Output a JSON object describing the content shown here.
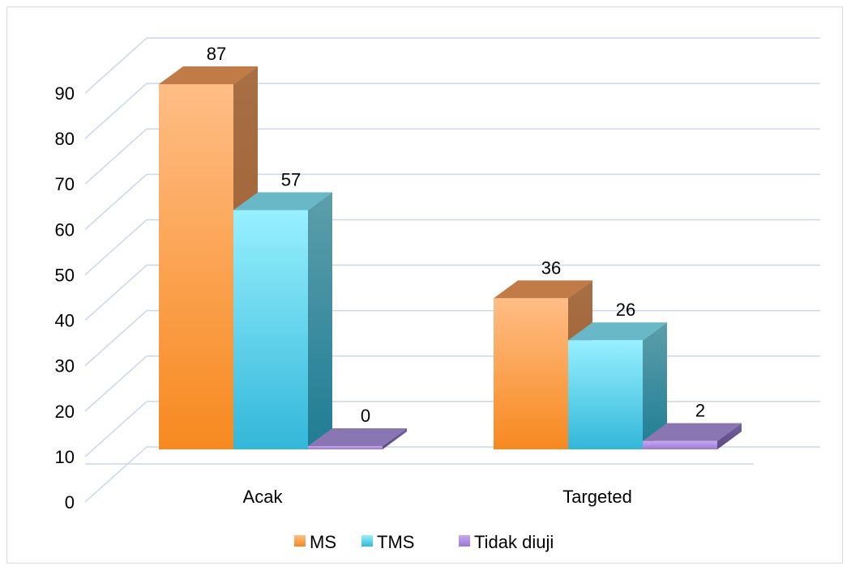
{
  "chart_data": {
    "type": "bar",
    "categories": [
      "Acak",
      "Targeted"
    ],
    "series": [
      {
        "name": "MS",
        "values": [
          87,
          36
        ],
        "color": "#f7943c"
      },
      {
        "name": "TMS",
        "values": [
          57,
          26
        ],
        "color": "#3ec1df"
      },
      {
        "name": "Tidak diuji",
        "values": [
          0,
          2
        ],
        "color": "#8e6fc4"
      }
    ],
    "yticks": [
      "0",
      "10",
      "20",
      "30",
      "40",
      "50",
      "60",
      "70",
      "80",
      "90"
    ],
    "ylim": [
      0,
      90
    ],
    "grid": true,
    "legend_position": "bottom",
    "style": "3d-column"
  }
}
